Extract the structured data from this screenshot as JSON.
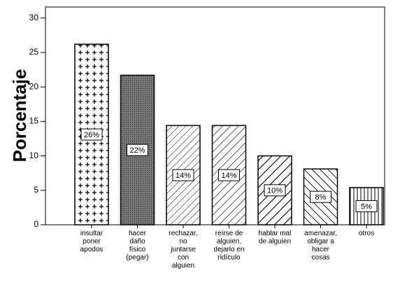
{
  "chart_data": {
    "type": "bar",
    "y_label": "Porcentaje",
    "categories": [
      [
        "insultar",
        "poner",
        "apodos"
      ],
      [
        "hacer",
        "daño",
        "físico",
        "(pegar)"
      ],
      [
        "rechazar,",
        "no",
        "juntarse",
        "con",
        "alguien"
      ],
      [
        "reírse de",
        "alguien,",
        "dejarlo en",
        "ridículo"
      ],
      [
        "hablar mal",
        "de alguien"
      ],
      [
        "amenazar,",
        "obligar a",
        "hacer",
        "cosas"
      ],
      [
        "otros"
      ]
    ],
    "values": [
      26.2,
      21.7,
      14.4,
      14.4,
      10.0,
      8.1,
      5.4
    ],
    "value_labels": [
      "26%",
      "22%",
      "14%",
      "14%",
      "10%",
      "8%",
      "5%"
    ],
    "color": "#000000",
    "ylim": [
      0,
      31.6
    ],
    "yticks": [
      0,
      5,
      10,
      15,
      20,
      25,
      30
    ]
  }
}
